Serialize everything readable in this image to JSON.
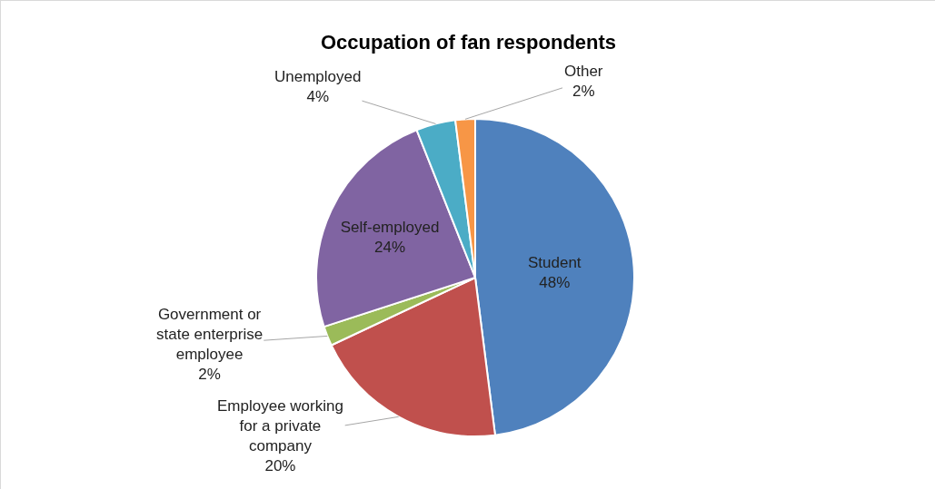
{
  "chart_data": {
    "type": "pie",
    "title": "Occupation of fan respondents",
    "categories": [
      "Student",
      "Employee working for a private company",
      "Government or state enterprise employee",
      "Self-employed",
      "Unemployed",
      "Other"
    ],
    "values": [
      48,
      20,
      2,
      24,
      4,
      2
    ],
    "value_labels": [
      "48%",
      "20%",
      "2%",
      "24%",
      "4%",
      "2%"
    ],
    "colors": [
      "#4f81bd",
      "#c0504d",
      "#9bbb59",
      "#8064a2",
      "#4bacc6",
      "#f79646"
    ],
    "legend": false
  }
}
